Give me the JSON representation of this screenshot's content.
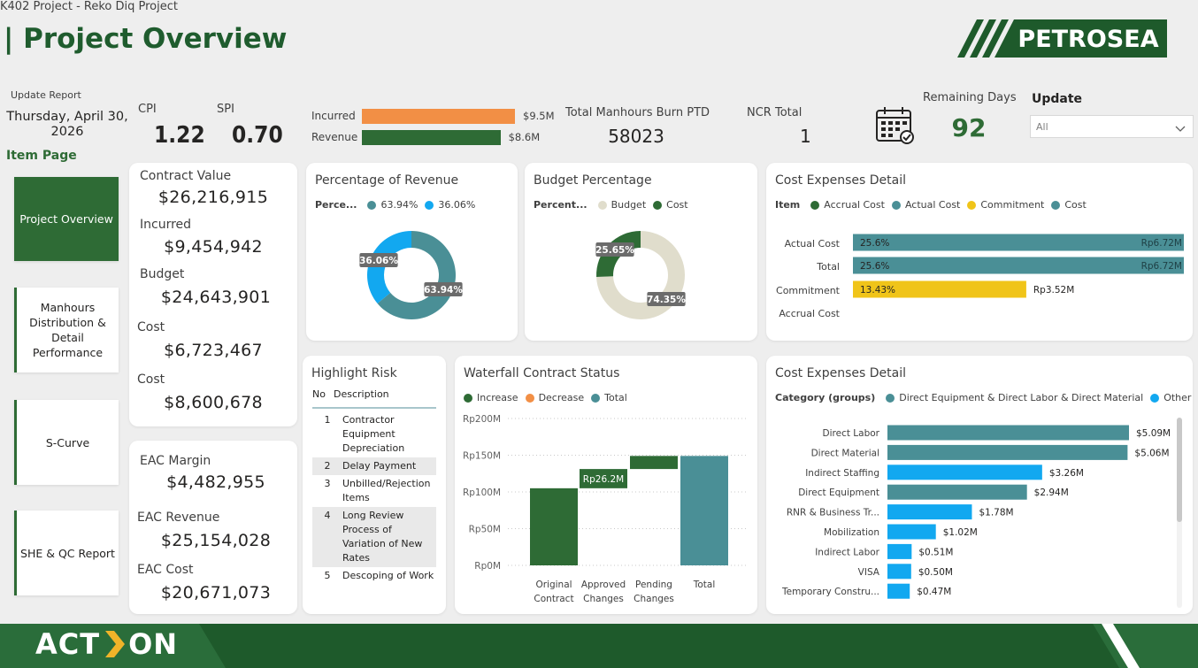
{
  "header": {
    "breadcrumb": "K402 Project - Reko Diq Project",
    "title": "| Project Overview",
    "logo_text": "PETROSEA"
  },
  "update_report": {
    "label": "Update Report",
    "date_line1": "Thursday, April 30,",
    "date_line2": "2026"
  },
  "kpis": {
    "cpi_label": "CPI",
    "cpi_value": "1.22",
    "spi_label": "SPI",
    "spi_value": "0.70",
    "manhours_label": "Total Manhours Burn PTD",
    "manhours_value": "58023",
    "ncr_label": "NCR Total",
    "ncr_value": "1",
    "remaining_label": "Remaining Days",
    "remaining_value": "92"
  },
  "incurred_revenue": {
    "incurred_label": "Incurred",
    "incurred_value": "$9.5M",
    "incurred_amount": 9.5,
    "revenue_label": "Revenue",
    "revenue_value": "$8.6M",
    "revenue_amount": 8.6,
    "incurred_color": "#f28f45",
    "revenue_color": "#2e6b35"
  },
  "update_filter": {
    "label": "Update",
    "selected": "All"
  },
  "nav": {
    "section_label": "Item Page",
    "items": [
      {
        "label": "Project Overview",
        "active": true
      },
      {
        "label": "Manhours Distribution & Detail Performance",
        "active": false
      },
      {
        "label": "S-Curve",
        "active": false
      },
      {
        "label": "SHE & QC Report",
        "active": false
      }
    ]
  },
  "contract_card": [
    {
      "label": "Contract Value",
      "value": "$26,216,915"
    },
    {
      "label": "Incurred",
      "value": "$9,454,942"
    },
    {
      "label": "Budget",
      "value": "$24,643,901"
    },
    {
      "label": "Cost",
      "value": "$6,723,467"
    },
    {
      "label": "Cost",
      "value": "$8,600,678"
    }
  ],
  "eac_card": [
    {
      "label": "EAC Margin",
      "value": "$4,482,955"
    },
    {
      "label": "EAC Revenue",
      "value": "$25,154,028"
    },
    {
      "label": "EAC Cost",
      "value": "$20,671,073"
    }
  ],
  "pct_revenue": {
    "title": "Percentage of Revenue",
    "legend_title": "Perce...",
    "legend": [
      {
        "label": "63.94%",
        "color": "#4a8f96"
      },
      {
        "label": "36.06%",
        "color": "#12a8f0"
      }
    ]
  },
  "budget_pct": {
    "title": "Budget Percentage",
    "legend_title": "Percent...",
    "legend": [
      {
        "label": "Budget",
        "color": "#e0ddcc"
      },
      {
        "label": "Cost",
        "color": "#2e6b35"
      }
    ]
  },
  "cost_exp_1": {
    "title": "Cost Expenses Detail",
    "legend_title": "Item",
    "legend": [
      {
        "label": "Accrual Cost",
        "color": "#2e6b35"
      },
      {
        "label": "Actual Cost",
        "color": "#4a8f96"
      },
      {
        "label": "Commitment",
        "color": "#f0c419"
      },
      {
        "label": "Cost",
        "color": "#4a8f96"
      }
    ]
  },
  "risk": {
    "title": "Highlight Risk",
    "col_no": "No",
    "col_desc": "Description",
    "rows": [
      {
        "no": "1",
        "desc": "Contractor Equipment Depreciation"
      },
      {
        "no": "2",
        "desc": "Delay Payment"
      },
      {
        "no": "3",
        "desc": "Unbilled/Rejection Items"
      },
      {
        "no": "4",
        "desc": "Long Review Process of Variation of New Rates"
      },
      {
        "no": "5",
        "desc": "Descoping of Work"
      }
    ]
  },
  "waterfall": {
    "title": "Waterfall Contract Status",
    "legend": [
      {
        "label": "Increase",
        "color": "#2e6b35"
      },
      {
        "label": "Decrease",
        "color": "#f28f45"
      },
      {
        "label": "Total",
        "color": "#4a8f96"
      }
    ]
  },
  "cost_exp_2": {
    "title": "Cost Expenses Detail",
    "legend_title": "Category (groups)",
    "legend": [
      {
        "label": "Direct Equipment & Direct Labor & Direct Material",
        "color": "#4a8f96"
      },
      {
        "label": "Other",
        "color": "#12a8f0"
      }
    ]
  },
  "chart_data": [
    {
      "type": "pie",
      "title": "Percentage of Revenue",
      "slices": [
        {
          "label": "63.94%",
          "value": 63.94,
          "color": "#4a8f96"
        },
        {
          "label": "36.06%",
          "value": 36.06,
          "color": "#12a8f0"
        }
      ]
    },
    {
      "type": "pie",
      "title": "Budget Percentage",
      "slices": [
        {
          "label": "74.35%",
          "value": 74.35,
          "color": "#e0ddcc"
        },
        {
          "label": "25.65%",
          "value": 25.65,
          "color": "#2e6b35"
        }
      ]
    },
    {
      "type": "bar",
      "orientation": "horizontal",
      "title": "Cost Expenses Detail",
      "categories": [
        "Actual Cost",
        "Total",
        "Commitment",
        "Accrual Cost"
      ],
      "values": [
        6.72,
        6.72,
        3.52,
        0
      ],
      "pct_labels": [
        "25.6%",
        "25.6%",
        "13.43%",
        ""
      ],
      "value_labels": [
        "Rp6.72M",
        "Rp6.72M",
        "Rp3.52M",
        ""
      ],
      "colors": [
        "#4a8f96",
        "#4a8f96",
        "#f0c419",
        "#2e6b35"
      ],
      "xlim": [
        0,
        6.72
      ]
    },
    {
      "type": "bar",
      "subtype": "waterfall",
      "title": "Waterfall Contract Status",
      "categories": [
        "Original Contract",
        "Approved Changes",
        "Pending Changes",
        "Total"
      ],
      "bars": [
        {
          "start": 0,
          "end": 105,
          "kind": "Increase"
        },
        {
          "start": 105,
          "end": 131.2,
          "kind": "Increase",
          "label": "Rp26.2M"
        },
        {
          "start": 131.2,
          "end": 149,
          "kind": "Increase"
        },
        {
          "start": 0,
          "end": 149,
          "kind": "Total"
        }
      ],
      "yticks": [
        "Rp0M",
        "Rp50M",
        "Rp100M",
        "Rp150M",
        "Rp200M"
      ],
      "ylim": [
        0,
        200
      ]
    },
    {
      "type": "bar",
      "orientation": "horizontal",
      "title": "Cost Expenses Detail",
      "categories": [
        "Direct Labor",
        "Direct Material",
        "Indirect Staffing",
        "Direct Equipment",
        "RNR & Business Tr...",
        "Mobilization",
        "Indirect Labor",
        "VISA",
        "Temporary Constru..."
      ],
      "values": [
        5.09,
        5.06,
        3.26,
        2.94,
        1.78,
        1.02,
        0.51,
        0.5,
        0.47
      ],
      "value_labels": [
        "$5.09M",
        "$5.06M",
        "$3.26M",
        "$2.94M",
        "$1.78M",
        "$1.02M",
        "$0.51M",
        "$0.50M",
        "$0.47M"
      ],
      "colors": [
        "#4a8f96",
        "#4a8f96",
        "#12a8f0",
        "#4a8f96",
        "#12a8f0",
        "#12a8f0",
        "#12a8f0",
        "#12a8f0",
        "#12a8f0"
      ],
      "xlim": [
        0,
        5.09
      ]
    }
  ],
  "footer": {
    "brand": "ACT",
    "brand_end": "ON"
  }
}
